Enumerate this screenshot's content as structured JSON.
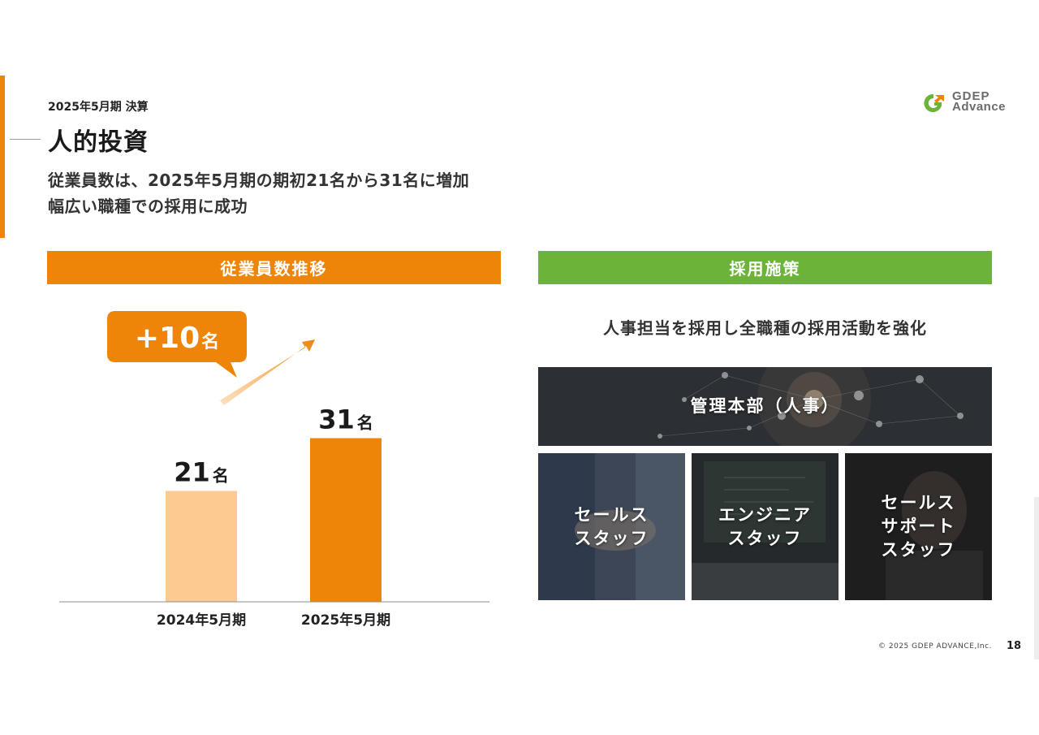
{
  "header": {
    "breadcrumb": "2025年5月期 決算",
    "title": "人的投資",
    "subtitle_line1": "従業員数は、2025年5月期の期初21名から31名に増加",
    "subtitle_line2": "幅広い職種での採用に成功"
  },
  "logo": {
    "line1": "GDEP",
    "line2": "Advance",
    "mark_color_green": "#6cb33a",
    "mark_color_orange": "#ee8408"
  },
  "left_section": {
    "header": "従業員数推移"
  },
  "chart_data": {
    "type": "bar",
    "categories": [
      "2024年5月期",
      "2025年5月期"
    ],
    "values": [
      21,
      31
    ],
    "unit": "名",
    "bar_colors": [
      "#fdca92",
      "#ee8408"
    ],
    "callout": {
      "number": "+10",
      "unit": "名",
      "color": "#ee8408"
    },
    "ylim": [
      0,
      40
    ],
    "grid": false,
    "legend": "none",
    "title": "",
    "xlabel": "",
    "ylabel": ""
  },
  "right_section": {
    "header": "採用施策",
    "headline": "人事担当を採用し全職種の採用活動を強化",
    "panels": {
      "hq": "管理本部（人事）",
      "sales": "セールス\nスタッフ",
      "engineer": "エンジニア\nスタッフ",
      "support": "セールス\nサポート\nスタッフ"
    }
  },
  "footer": {
    "copyright": "© 2025 GDEP ADVANCE,Inc.",
    "page_number": "18"
  },
  "colors": {
    "orange": "#ee8408",
    "light_orange": "#fdca92",
    "green": "#6cb33a"
  }
}
